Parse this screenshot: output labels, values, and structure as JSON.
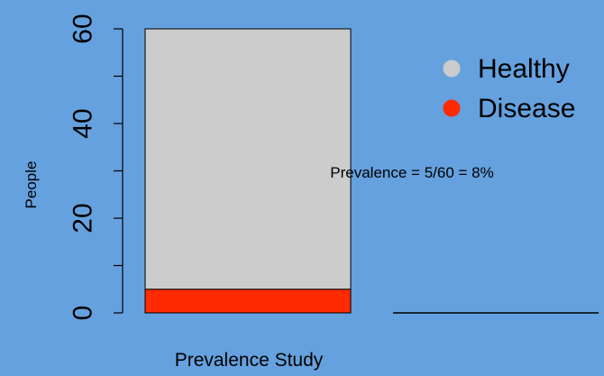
{
  "chart_data": {
    "type": "bar",
    "stacked": true,
    "categories": [
      "Prevalence Study"
    ],
    "series": [
      {
        "name": "Disease",
        "values": [
          5
        ],
        "color": "#ff2a00"
      },
      {
        "name": "Healthy",
        "values": [
          55
        ],
        "color": "#cccccc"
      }
    ],
    "title": "",
    "xlabel": "",
    "ylabel": "People",
    "ylim": [
      0,
      60
    ],
    "yticks": [
      0,
      10,
      20,
      30,
      40,
      50,
      60
    ],
    "ytick_labels": [
      "0",
      "20",
      "40",
      "60"
    ],
    "ytick_label_values": [
      0,
      20,
      40,
      60
    ],
    "grid": false,
    "legend": {
      "position": "top-right",
      "entries": [
        {
          "label": "Healthy",
          "color": "#cccccc"
        },
        {
          "label": "Disease",
          "color": "#ff2a00"
        }
      ]
    },
    "annotation": "Prevalence = 5/60 = 8%",
    "background_color": "#65a1de"
  }
}
